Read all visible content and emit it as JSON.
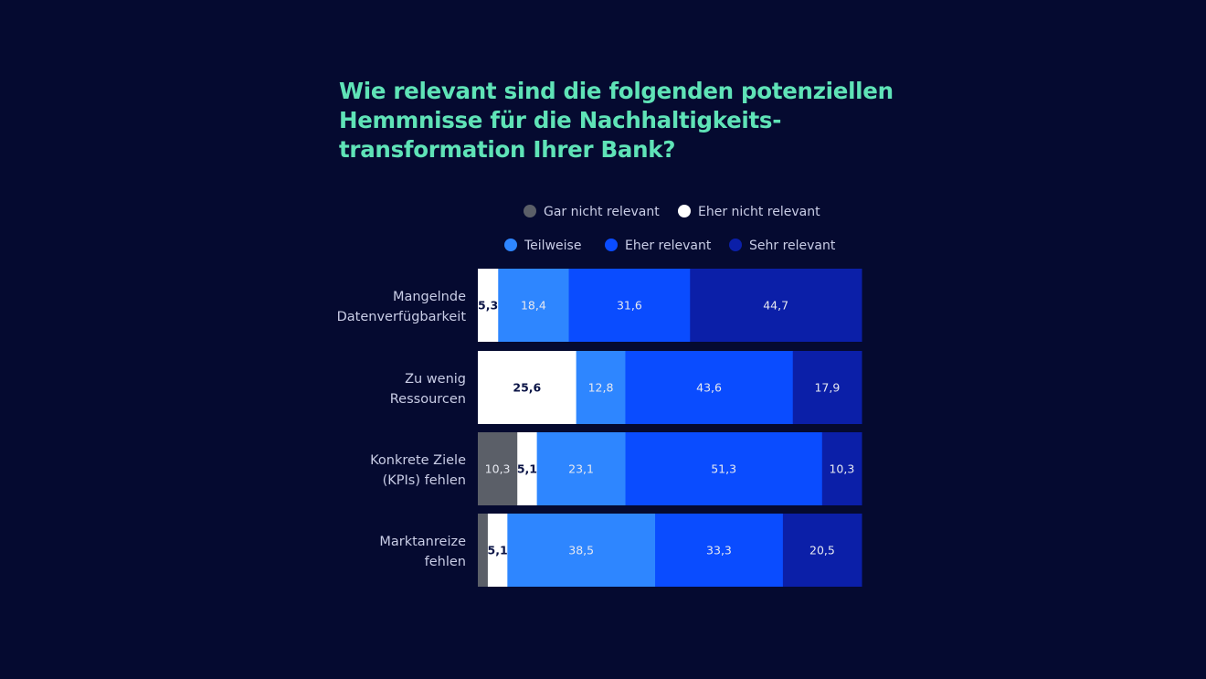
{
  "chart_data": {
    "type": "bar",
    "orientation": "horizontal-stacked-100",
    "title": "Wie relevant sind die folgenden potenziellen\nHemmnisse für die Nachhaltigkeits-\ntransformation Ihrer Bank?",
    "categories": [
      [
        "Mangelnde",
        "Datenverfügbarkeit"
      ],
      [
        "Zu wenig",
        "Ressourcen"
      ],
      [
        "Konkrete Ziele",
        "(KPIs) fehlen"
      ],
      [
        "Marktanreize",
        "fehlen"
      ]
    ],
    "series": [
      {
        "name": "Gar nicht relevant",
        "color": "#5b5f68",
        "label_color": "#e6e8f0",
        "label_bold": false,
        "values": [
          0,
          0,
          10.3,
          2.6
        ],
        "labels": [
          "",
          "",
          "10,3",
          ""
        ]
      },
      {
        "name": "Eher nicht relevant",
        "color": "#ffffff",
        "label_color": "#0b1446",
        "label_bold": true,
        "values": [
          5.3,
          25.6,
          5.1,
          5.1
        ],
        "labels": [
          "5,3",
          "25,6",
          "5,1",
          "5,1"
        ]
      },
      {
        "name": "Teilweise",
        "color": "#2e86ff",
        "label_color": "#e6e8f0",
        "label_bold": false,
        "values": [
          18.4,
          12.8,
          23.1,
          38.5
        ],
        "labels": [
          "18,4",
          "12,8",
          "23,1",
          "38,5"
        ]
      },
      {
        "name": "Eher relevant",
        "color": "#0a4cff",
        "label_color": "#e6e8f0",
        "label_bold": false,
        "values": [
          31.6,
          43.6,
          51.3,
          33.3
        ],
        "labels": [
          "31,6",
          "43,6",
          "51,3",
          "33,3"
        ]
      },
      {
        "name": "Sehr relevant",
        "color": "#0b1fa8",
        "label_color": "#e6e8f0",
        "label_bold": false,
        "values": [
          44.7,
          17.9,
          10.3,
          20.5
        ],
        "labels": [
          "44,7",
          "17,9",
          "10,3",
          "20,5"
        ]
      }
    ],
    "legend_rows": [
      [
        0,
        1
      ],
      [
        2,
        3,
        4
      ]
    ],
    "legend_position": "top"
  }
}
